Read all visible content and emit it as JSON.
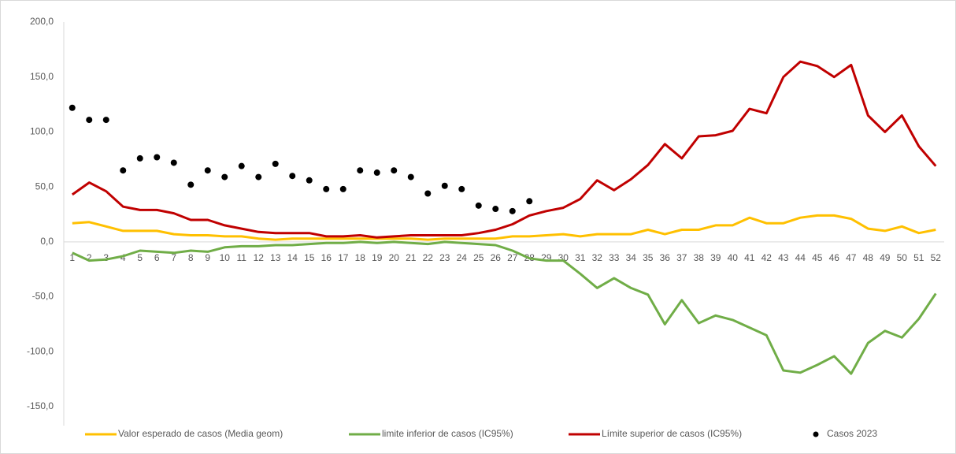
{
  "chart_data": {
    "type": "line",
    "categories": [
      "1",
      "2",
      "3",
      "4",
      "5",
      "6",
      "7",
      "8",
      "9",
      "10",
      "11",
      "12",
      "13",
      "14",
      "15",
      "16",
      "17",
      "18",
      "19",
      "20",
      "21",
      "22",
      "23",
      "24",
      "25",
      "26",
      "27",
      "28",
      "29",
      "30",
      "31",
      "32",
      "33",
      "34",
      "35",
      "36",
      "37",
      "38",
      "39",
      "40",
      "41",
      "42",
      "43",
      "44",
      "45",
      "46",
      "47",
      "48",
      "49",
      "50",
      "51",
      "52"
    ],
    "series": [
      {
        "name": "Valor esperado de casos (Media geom)",
        "color": "#ffc000",
        "style": "line",
        "values": [
          17,
          18,
          14,
          10,
          10,
          10,
          7,
          6,
          6,
          5,
          5,
          3,
          2,
          3,
          3,
          3,
          3,
          3,
          3,
          3,
          3,
          2,
          3,
          3,
          3,
          3,
          5,
          5,
          6,
          7,
          5,
          7,
          7,
          7,
          11,
          7,
          11,
          11,
          15,
          15,
          22,
          17,
          17,
          22,
          24,
          24,
          21,
          12,
          10,
          14,
          8,
          11
        ]
      },
      {
        "name": "limite inferior de casos (IC95%)",
        "color": "#70ad47",
        "style": "line",
        "values": [
          -10,
          -17,
          -16,
          -13,
          -8,
          -9,
          -10,
          -8,
          -9,
          -5,
          -4,
          -4,
          -3,
          -3,
          -2,
          -1,
          -1,
          0,
          -1,
          0,
          -1,
          -2,
          0,
          -1,
          -2,
          -3,
          -8,
          -15,
          -17,
          -17,
          -29,
          -42,
          -33,
          -42,
          -48,
          -75,
          -53,
          -74,
          -67,
          -71,
          -78,
          -85,
          -117,
          -119,
          -112,
          -104,
          -120,
          -92,
          -81,
          -87,
          -70,
          -47
        ]
      },
      {
        "name": "Límite superior de casos (IC95%)",
        "color": "#c00000",
        "style": "line",
        "values": [
          43,
          54,
          46,
          32,
          29,
          29,
          26,
          20,
          20,
          15,
          12,
          9,
          8,
          8,
          8,
          5,
          5,
          6,
          4,
          5,
          6,
          6,
          6,
          6,
          8,
          11,
          16,
          24,
          28,
          31,
          39,
          56,
          47,
          57,
          70,
          89,
          76,
          96,
          97,
          101,
          121,
          117,
          150,
          164,
          160,
          150,
          161,
          115,
          100,
          115,
          87,
          69
        ]
      },
      {
        "name": "Casos 2023",
        "color": "#000000",
        "style": "markers",
        "values": [
          122,
          111,
          111,
          65,
          76,
          77,
          72,
          52,
          65,
          59,
          69,
          59,
          71,
          60,
          56,
          48,
          48,
          65,
          63,
          65,
          59,
          44,
          51,
          48,
          33,
          30,
          28,
          37,
          null,
          null,
          null,
          null,
          null,
          null,
          null,
          null,
          null,
          null,
          null,
          null,
          null,
          null,
          null,
          null,
          null,
          null,
          null,
          null,
          null,
          null,
          null,
          null
        ]
      }
    ],
    "ylim": [
      -150,
      200
    ],
    "yticks": [
      {
        "value": -150,
        "label": "-150,0"
      },
      {
        "value": -100,
        "label": "-100,0"
      },
      {
        "value": -50,
        "label": "-50,0"
      },
      {
        "value": 0,
        "label": "0,0"
      },
      {
        "value": 50,
        "label": "50,0"
      },
      {
        "value": 100,
        "label": "100,0"
      },
      {
        "value": 150,
        "label": "150,0"
      },
      {
        "value": 200,
        "label": "200,0"
      }
    ],
    "grid": false,
    "legend": "bottom"
  }
}
